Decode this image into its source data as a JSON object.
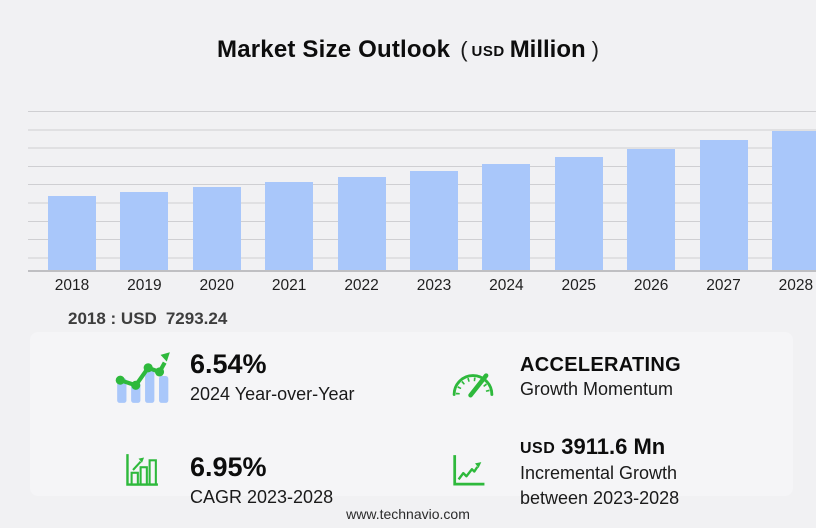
{
  "title": {
    "main": "Market Size Outlook",
    "open_paren": "(",
    "currency": "USD",
    "unit": "Million",
    "close_paren": ")"
  },
  "chart_data": {
    "type": "bar",
    "title": "Market Size Outlook (USD Million)",
    "categories": [
      "2018",
      "2019",
      "2020",
      "2021",
      "2022",
      "2023",
      "2024",
      "2025",
      "2026",
      "2027",
      "2028"
    ],
    "values": [
      7293.24,
      7736,
      8206,
      8705,
      9233,
      9796,
      10437,
      11172,
      11960,
      12803,
      13707.5
    ],
    "xlabel": "",
    "ylabel": "",
    "ylim": [
      0,
      15700
    ],
    "grid": true,
    "legend": "none",
    "bar_color": "#a9c7fa"
  },
  "annotation": {
    "label": "2018 : USD",
    "value": "7293.24"
  },
  "stats": [
    {
      "value": "6.54%",
      "label_lines": [
        "2024 Year-over-Year"
      ]
    },
    {
      "value": "ACCELERATING",
      "label_lines": [
        "Growth Momentum"
      ]
    },
    {
      "value": "6.95%",
      "label_lines": [
        "CAGR 2023-2028"
      ]
    },
    {
      "value_prefix": "USD",
      "value": "3911.6 Mn",
      "label_lines": [
        "Incremental Growth",
        "between 2023-2028"
      ]
    }
  ],
  "footer": {
    "url": "www.technavio.com"
  },
  "colors": {
    "accent_green": "#2eb93c",
    "bar_blue": "#a9c7fa",
    "background": "#f1f1f3",
    "panel": "#f5f5f7"
  }
}
